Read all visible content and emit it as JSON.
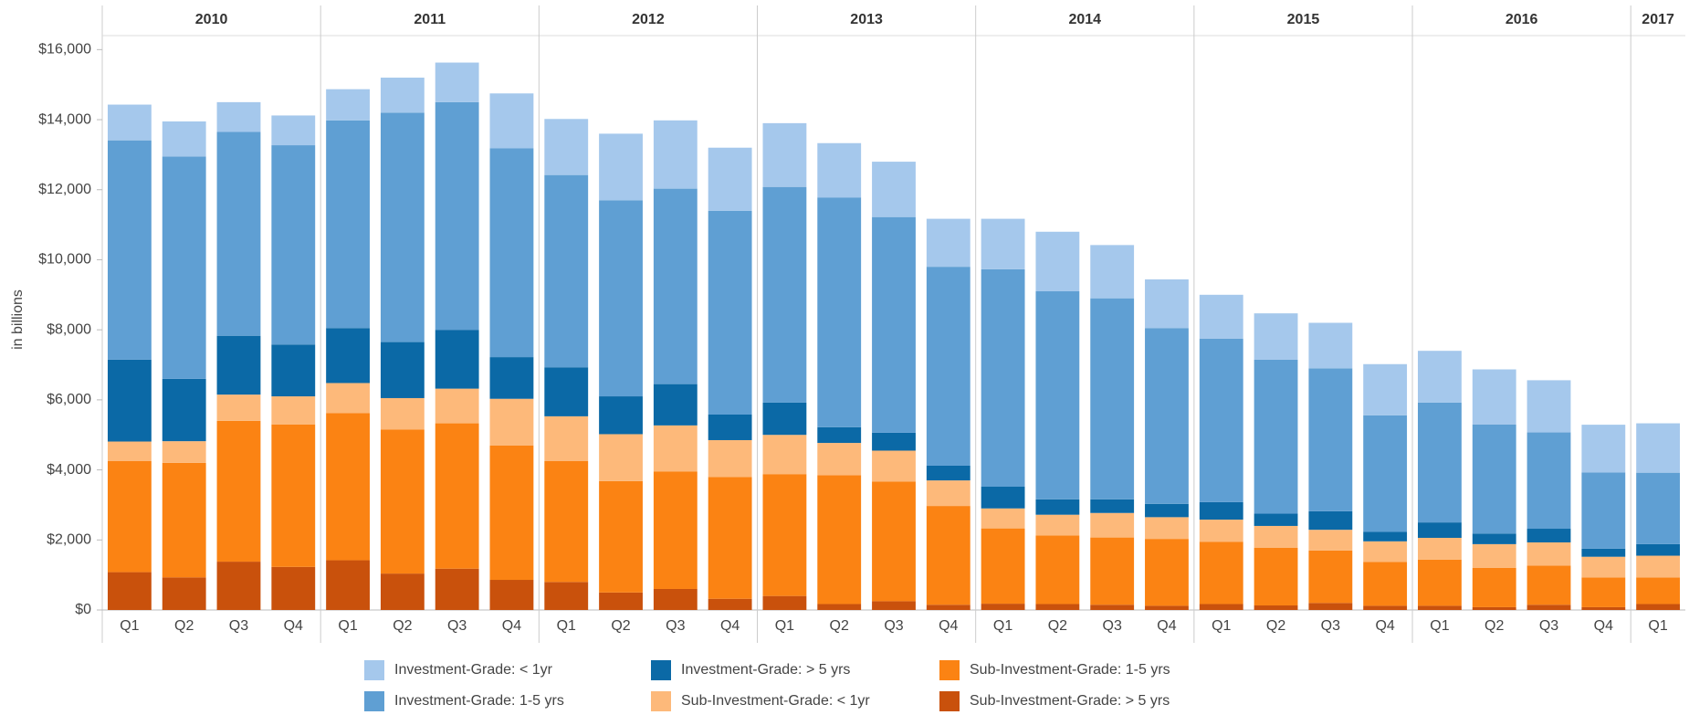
{
  "chart_data": {
    "type": "stacked-bar",
    "y_label": "in billions",
    "groups": [
      {
        "label": "2010",
        "categories": [
          "Q1",
          "Q2",
          "Q3",
          "Q4"
        ]
      },
      {
        "label": "2011",
        "categories": [
          "Q1",
          "Q2",
          "Q3",
          "Q4"
        ]
      },
      {
        "label": "2012",
        "categories": [
          "Q1",
          "Q2",
          "Q3",
          "Q4"
        ]
      },
      {
        "label": "2013",
        "categories": [
          "Q1",
          "Q2",
          "Q3",
          "Q4"
        ]
      },
      {
        "label": "2014",
        "categories": [
          "Q1",
          "Q2",
          "Q3",
          "Q4"
        ]
      },
      {
        "label": "2015",
        "categories": [
          "Q1",
          "Q2",
          "Q3",
          "Q4"
        ]
      },
      {
        "label": "2016",
        "categories": [
          "Q1",
          "Q2",
          "Q3",
          "Q4"
        ]
      },
      {
        "label": "2017",
        "categories": [
          "Q1"
        ]
      }
    ],
    "series": [
      {
        "name": "Investment-Grade: < 1yr",
        "color": "#a5c8ec",
        "values": [
          1020,
          1000,
          850,
          850,
          890,
          1000,
          1130,
          1570,
          1600,
          1900,
          1950,
          1800,
          1820,
          1550,
          1580,
          1370,
          1440,
          1700,
          1520,
          1390,
          1250,
          1320,
          1300,
          1460,
          1480,
          1570,
          1490,
          1360,
          1410
        ]
      },
      {
        "name": "Investment-Grade: 1-5 yrs",
        "color": "#5f9fd3",
        "values": [
          6260,
          6350,
          5820,
          5690,
          5930,
          6550,
          6500,
          5960,
          5490,
          5600,
          5580,
          5820,
          6160,
          6560,
          6160,
          5680,
          6210,
          5940,
          5740,
          5020,
          4670,
          4400,
          4080,
          3330,
          3420,
          3120,
          2750,
          2180,
          2040
        ]
      },
      {
        "name": "Investment-Grade: > 5 yrs",
        "color": "#0b69a6",
        "values": [
          2340,
          1780,
          1680,
          1480,
          1570,
          1600,
          1680,
          1190,
          1400,
          1080,
          1180,
          730,
          920,
          450,
          510,
          420,
          620,
          440,
          390,
          380,
          500,
          350,
          530,
          270,
          440,
          300,
          390,
          230,
          330
        ]
      },
      {
        "name": "Sub-Investment-Grade: < 1yr",
        "color": "#fdb97a",
        "values": [
          560,
          620,
          750,
          800,
          860,
          900,
          990,
          1330,
          1280,
          1340,
          1320,
          1050,
          1120,
          920,
          880,
          730,
          570,
          590,
          700,
          620,
          630,
          620,
          590,
          590,
          620,
          680,
          660,
          590,
          620
        ]
      },
      {
        "name": "Sub-Investment-Grade: 1-5 yrs",
        "color": "#fb8313",
        "values": [
          3170,
          3270,
          4020,
          4070,
          4200,
          4110,
          4150,
          3840,
          3450,
          3180,
          3350,
          3480,
          3480,
          3680,
          3420,
          2820,
          2150,
          1960,
          1920,
          1910,
          1780,
          1650,
          1500,
          1250,
          1320,
          1120,
          1120,
          850,
          760
        ]
      },
      {
        "name": "Sub-Investment-Grade: > 5 yrs",
        "color": "#c9510c",
        "values": [
          1080,
          930,
          1380,
          1230,
          1420,
          1040,
          1180,
          860,
          800,
          500,
          600,
          320,
          400,
          170,
          250,
          150,
          180,
          170,
          150,
          120,
          170,
          130,
          200,
          120,
          120,
          80,
          150,
          80,
          170
        ]
      }
    ],
    "ylim": [
      0,
      16400
    ],
    "yticks": [
      {
        "value": 0,
        "label": "$0"
      },
      {
        "value": 2000,
        "label": "$2,000"
      },
      {
        "value": 4000,
        "label": "$4,000"
      },
      {
        "value": 6000,
        "label": "$6,000"
      },
      {
        "value": 8000,
        "label": "$8,000"
      },
      {
        "value": 10000,
        "label": "$10,000"
      },
      {
        "value": 12000,
        "label": "$12,000"
      },
      {
        "value": 14000,
        "label": "$14,000"
      },
      {
        "value": 16000,
        "label": "$16,000"
      }
    ],
    "grid": false
  }
}
